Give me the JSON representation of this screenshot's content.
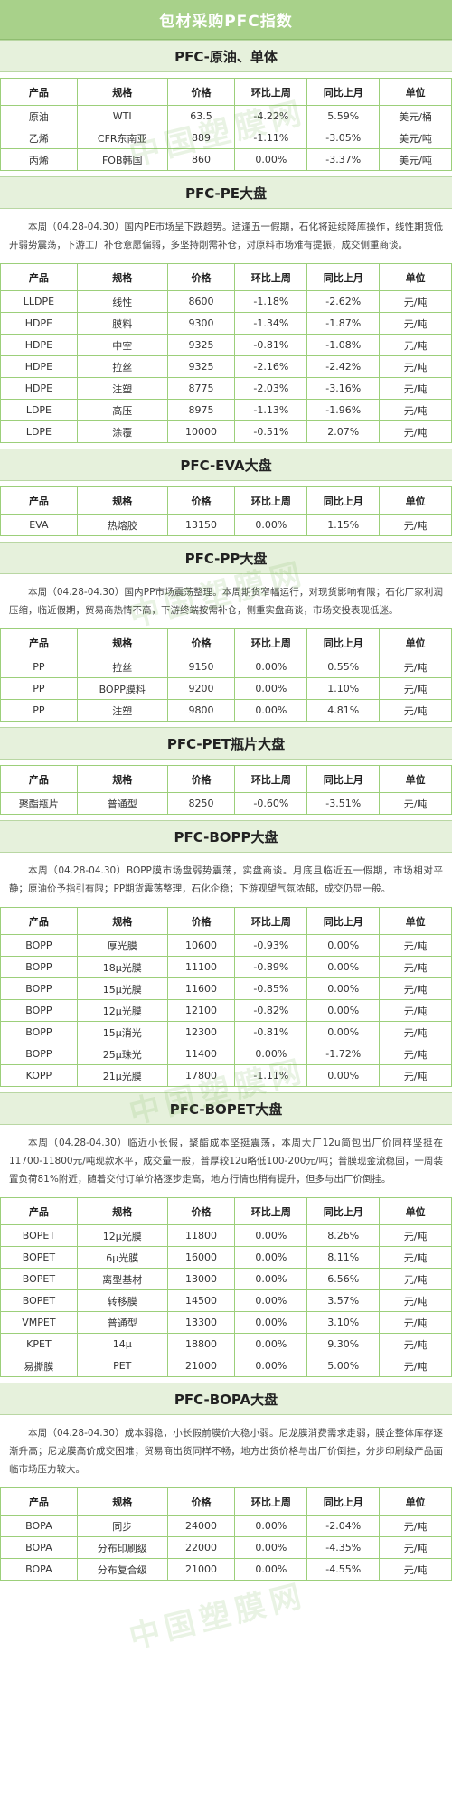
{
  "title": "包材采购PFC指数",
  "headers": [
    "产品",
    "规格",
    "价格",
    "环比上周",
    "同比上月",
    "单位"
  ],
  "watermark": "中国塑膜网",
  "colors": {
    "header_bg": "#a8d18a",
    "section_bg": "#e6f1dc",
    "border": "#9ccf7a",
    "negative": "#2aa84a",
    "positive": "#e02020"
  },
  "sections": [
    {
      "title": "PFC-原油、单体",
      "paragraph": "",
      "rows": [
        [
          "原油",
          "WTI",
          "63.5",
          "-4.22%",
          "5.59%",
          "美元/桶"
        ],
        [
          "乙烯",
          "CFR东南亚",
          "889",
          "-1.11%",
          "-3.05%",
          "美元/吨"
        ],
        [
          "丙烯",
          "FOB韩国",
          "860",
          "0.00%",
          "-3.37%",
          "美元/吨"
        ]
      ]
    },
    {
      "title": "PFC-PE大盘",
      "paragraph": "本周（04.28-04.30）国内PE市场呈下跌趋势。适逢五一假期，石化将延续降库操作，线性期货低开弱势震荡，下游工厂补仓意愿偏弱，多坚持刚需补仓，对原料市场难有提振，成交侧重商谈。",
      "rows": [
        [
          "LLDPE",
          "线性",
          "8600",
          "-1.18%",
          "-2.62%",
          "元/吨"
        ],
        [
          "HDPE",
          "膜料",
          "9300",
          "-1.34%",
          "-1.87%",
          "元/吨"
        ],
        [
          "HDPE",
          "中空",
          "9325",
          "-0.81%",
          "-1.08%",
          "元/吨"
        ],
        [
          "HDPE",
          "拉丝",
          "9325",
          "-2.16%",
          "-2.42%",
          "元/吨"
        ],
        [
          "HDPE",
          "注塑",
          "8775",
          "-2.03%",
          "-3.16%",
          "元/吨"
        ],
        [
          "LDPE",
          "高压",
          "8975",
          "-1.13%",
          "-1.96%",
          "元/吨"
        ],
        [
          "LDPE",
          "涂覆",
          "10000",
          "-0.51%",
          "2.07%",
          "元/吨"
        ]
      ]
    },
    {
      "title": "PFC-EVA大盘",
      "paragraph": "",
      "rows": [
        [
          "EVA",
          "热熔胶",
          "13150",
          "0.00%",
          "1.15%",
          "元/吨"
        ]
      ]
    },
    {
      "title": "PFC-PP大盘",
      "paragraph": "本周（04.28-04.30）国内PP市场震荡整理。本周期货窄幅运行，对现货影响有限；石化厂家利润压缩，临近假期，贸易商热情不高，下游终端按需补仓，侧重实盘商谈，市场交投表现低迷。",
      "rows": [
        [
          "PP",
          "拉丝",
          "9150",
          "0.00%",
          "0.55%",
          "元/吨"
        ],
        [
          "PP",
          "BOPP膜料",
          "9200",
          "0.00%",
          "1.10%",
          "元/吨"
        ],
        [
          "PP",
          "注塑",
          "9800",
          "0.00%",
          "4.81%",
          "元/吨"
        ]
      ]
    },
    {
      "title": "PFC-PET瓶片大盘",
      "paragraph": "",
      "rows": [
        [
          "聚酯瓶片",
          "普通型",
          "8250",
          "-0.60%",
          "-3.51%",
          "元/吨"
        ]
      ]
    },
    {
      "title": "PFC-BOPP大盘",
      "paragraph": "本周（04.28-04.30）BOPP膜市场盘弱势震荡，实盘商谈。月底且临近五一假期，市场相对平静；原油价予指引有限；PP期货震荡整理，石化企稳；下游观望气氛浓郁，成交仍显一般。",
      "rows": [
        [
          "BOPP",
          "厚光膜",
          "10600",
          "-0.93%",
          "0.00%",
          "元/吨"
        ],
        [
          "BOPP",
          "18μ光膜",
          "11100",
          "-0.89%",
          "0.00%",
          "元/吨"
        ],
        [
          "BOPP",
          "15μ光膜",
          "11600",
          "-0.85%",
          "0.00%",
          "元/吨"
        ],
        [
          "BOPP",
          "12μ光膜",
          "12100",
          "-0.82%",
          "0.00%",
          "元/吨"
        ],
        [
          "BOPP",
          "15μ消光",
          "12300",
          "-0.81%",
          "0.00%",
          "元/吨"
        ],
        [
          "BOPP",
          "25μ珠光",
          "11400",
          "0.00%",
          "-1.72%",
          "元/吨"
        ],
        [
          "KOPP",
          "21μ光膜",
          "17800",
          "-1.11%",
          "0.00%",
          "元/吨"
        ]
      ]
    },
    {
      "title": "PFC-BOPET大盘",
      "paragraph": "本周（04.28-04.30）临近小长假，聚酯成本坚挺震荡，本周大厂12u简包出厂价同样坚挺在11700-11800元/吨现款水平，成交量一般，普厚较12u略低100-200元/吨；普膜现金流稳固，一周装置负荷81%附近，随着交付订单价格逐步走高，地方行情也稍有提升，但多与出厂价倒挂。",
      "rows": [
        [
          "BOPET",
          "12μ光膜",
          "11800",
          "0.00%",
          "8.26%",
          "元/吨"
        ],
        [
          "BOPET",
          "6μ光膜",
          "16000",
          "0.00%",
          "8.11%",
          "元/吨"
        ],
        [
          "BOPET",
          "离型基材",
          "13000",
          "0.00%",
          "6.56%",
          "元/吨"
        ],
        [
          "BOPET",
          "转移膜",
          "14500",
          "0.00%",
          "3.57%",
          "元/吨"
        ],
        [
          "VMPET",
          "普通型",
          "13300",
          "0.00%",
          "3.10%",
          "元/吨"
        ],
        [
          "KPET",
          "14μ",
          "18800",
          "0.00%",
          "9.30%",
          "元/吨"
        ],
        [
          "易撕膜",
          "PET",
          "21000",
          "0.00%",
          "5.00%",
          "元/吨"
        ]
      ]
    },
    {
      "title": "PFC-BOPA大盘",
      "paragraph": "本周（04.28-04.30）成本弱稳，小长假前膜价大稳小弱。尼龙膜消费需求走弱，膜企整体库存逐渐升高；尼龙膜高价成交困难；贸易商出货同样不畅，地方出货价格与出厂价倒挂，分步印刷级产品面临市场压力较大。",
      "rows": [
        [
          "BOPA",
          "同步",
          "24000",
          "0.00%",
          "-2.04%",
          "元/吨"
        ],
        [
          "BOPA",
          "分布印刷级",
          "22000",
          "0.00%",
          "-4.35%",
          "元/吨"
        ],
        [
          "BOPA",
          "分布复合级",
          "21000",
          "0.00%",
          "-4.55%",
          "元/吨"
        ]
      ]
    }
  ]
}
